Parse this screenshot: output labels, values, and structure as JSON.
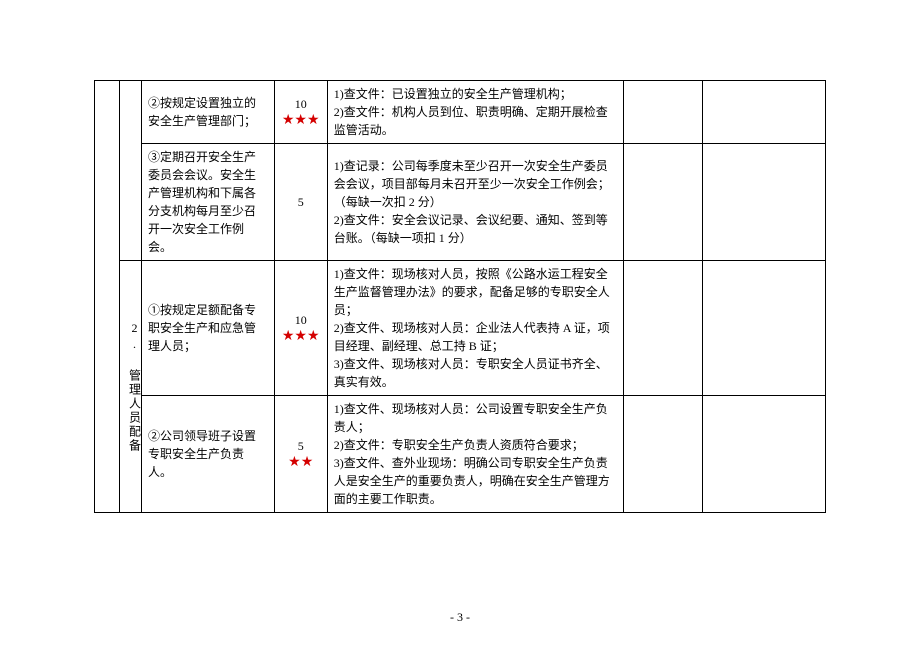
{
  "page_number": "- 3 -",
  "colors": {
    "star": "#d40000",
    "text": "#000000",
    "border": "#000000",
    "background": "#ffffff"
  },
  "section2_label": "2. 管理人员配备",
  "rows": [
    {
      "item": "②按规定设置独立的安全生产管理部门；",
      "score": "10",
      "stars": "★★★",
      "criteria": "1)查文件：已设置独立的安全生产管理机构；\n2)查文件：机构人员到位、职责明确、定期开展检查监管活动。"
    },
    {
      "item": "③定期召开安全生产委员会会议。安全生产管理机构和下属各分支机构每月至少召开一次安全工作例会。",
      "score": "5",
      "stars": "",
      "criteria": "1)查记录：公司每季度未至少召开一次安全生产委员会会议，项目部每月未召开至少一次安全工作例会；（每缺一次扣 2 分）\n2)查文件：安全会议记录、会议纪要、通知、签到等台账。（每缺一项扣 1 分）"
    },
    {
      "item": "①按规定足额配备专职安全生产和应急管理人员；",
      "score": "10",
      "stars": "★★★",
      "criteria": "1)查文件：现场核对人员，按照《公路水运工程安全生产监督管理办法》的要求，配备足够的专职安全人员；\n2)查文件、现场核对人员：企业法人代表持 A 证，项目经理、副经理、总工持 B 证；\n3)查文件、现场核对人员：专职安全人员证书齐全、真实有效。"
    },
    {
      "item": "②公司领导班子设置专职安全生产负责人。",
      "score": "5",
      "stars": "★★",
      "criteria": "1)查文件、现场核对人员：公司设置专职安全生产负责人；\n2)查文件：专职安全生产负责人资质符合要求；\n3)查文件、查外业现场：明确公司专职安全生产负责人是安全生产的重要负责人，明确在安全生产管理方面的主要工作职责。"
    }
  ]
}
